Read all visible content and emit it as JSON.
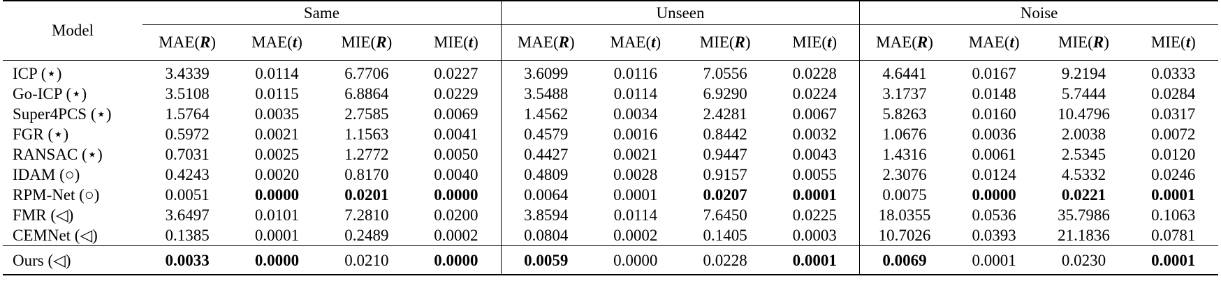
{
  "table": {
    "model_header": "Model",
    "groups": [
      "Same",
      "Unseen",
      "Noise"
    ],
    "metrics": [
      "MAE(R)",
      "MAE(t)",
      "MIE(R)",
      "MIE(t)"
    ],
    "rows": [
      {
        "model": "ICP (⋆)",
        "cells": [
          "3.4339",
          "0.0114",
          "6.7706",
          "0.0227",
          "3.6099",
          "0.0116",
          "7.0556",
          "0.0228",
          "4.6441",
          "0.0167",
          "9.2194",
          "0.0333"
        ],
        "bold": []
      },
      {
        "model": "Go-ICP (⋆)",
        "cells": [
          "3.5108",
          "0.0115",
          "6.8864",
          "0.0229",
          "3.5488",
          "0.0114",
          "6.9290",
          "0.0224",
          "3.1737",
          "0.0148",
          "5.7444",
          "0.0284"
        ],
        "bold": []
      },
      {
        "model": "Super4PCS (⋆)",
        "cells": [
          "1.5764",
          "0.0035",
          "2.7585",
          "0.0069",
          "1.4562",
          "0.0034",
          "2.4281",
          "0.0067",
          "5.8263",
          "0.0160",
          "10.4796",
          "0.0317"
        ],
        "bold": []
      },
      {
        "model": "FGR (⋆)",
        "cells": [
          "0.5972",
          "0.0021",
          "1.1563",
          "0.0041",
          "0.4579",
          "0.0016",
          "0.8442",
          "0.0032",
          "1.0676",
          "0.0036",
          "2.0038",
          "0.0072"
        ],
        "bold": []
      },
      {
        "model": "RANSAC (⋆)",
        "cells": [
          "0.7031",
          "0.0025",
          "1.2772",
          "0.0050",
          "0.4427",
          "0.0021",
          "0.9447",
          "0.0043",
          "1.4316",
          "0.0061",
          "2.5345",
          "0.0120"
        ],
        "bold": []
      },
      {
        "model": "IDAM (○)",
        "cells": [
          "0.4243",
          "0.0020",
          "0.8170",
          "0.0040",
          "0.4809",
          "0.0028",
          "0.9157",
          "0.0055",
          "2.3076",
          "0.0124",
          "4.5332",
          "0.0246"
        ],
        "bold": []
      },
      {
        "model": "RPM-Net (○)",
        "cells": [
          "0.0051",
          "0.0000",
          "0.0201",
          "0.0000",
          "0.0064",
          "0.0001",
          "0.0207",
          "0.0001",
          "0.0075",
          "0.0000",
          "0.0221",
          "0.0001"
        ],
        "bold": [
          1,
          2,
          3,
          6,
          7,
          9,
          10,
          11
        ]
      },
      {
        "model": "FMR (◁)",
        "cells": [
          "3.6497",
          "0.0101",
          "7.2810",
          "0.0200",
          "3.8594",
          "0.0114",
          "7.6450",
          "0.0225",
          "18.0355",
          "0.0536",
          "35.7986",
          "0.1063"
        ],
        "bold": []
      },
      {
        "model": "CEMNet (◁)",
        "cells": [
          "0.1385",
          "0.0001",
          "0.2489",
          "0.0002",
          "0.0804",
          "0.0002",
          "0.1405",
          "0.0003",
          "10.7026",
          "0.0393",
          "21.1836",
          "0.0781"
        ],
        "bold": []
      },
      {
        "model": "Ours (◁)",
        "cells": [
          "0.0033",
          "0.0000",
          "0.0210",
          "0.0000",
          "0.0059",
          "0.0000",
          "0.0228",
          "0.0001",
          "0.0069",
          "0.0001",
          "0.0230",
          "0.0001"
        ],
        "bold": [
          0,
          1,
          3,
          4,
          7,
          8,
          11
        ]
      }
    ]
  }
}
